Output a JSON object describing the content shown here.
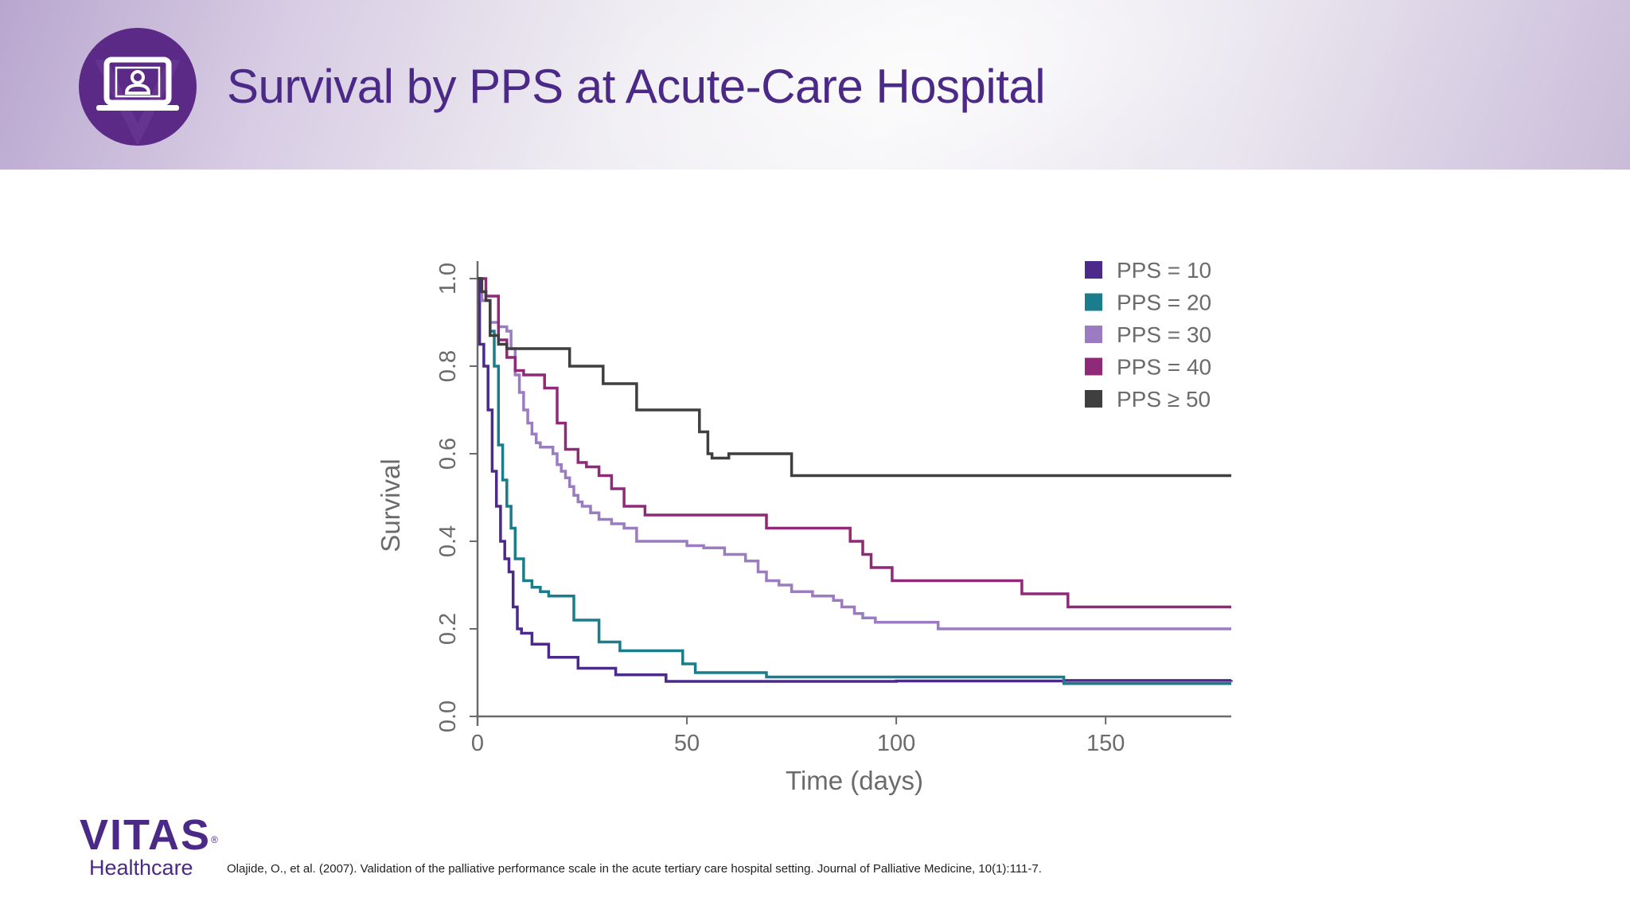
{
  "slide": {
    "title": "Survival by PPS at Acute-Care Hospital",
    "citation": "Olajide, O., et al. (2007). Validation of the palliative performance scale in the acute tertiary care hospital setting. Journal of Palliative Medicine, 10(1):111-7.",
    "logo": {
      "word": "VITAS",
      "mark": "®",
      "sub": "Healthcare"
    },
    "header_icon": "laptop-user-icon",
    "brand_color": "#5b2a86"
  },
  "chart_data": {
    "type": "line",
    "step": true,
    "xlabel": "Time (days)",
    "ylabel": "Survival",
    "xlim": [
      0,
      180
    ],
    "ylim": [
      0,
      1.0
    ],
    "xticks": [
      0,
      50,
      100,
      150
    ],
    "yticks": [
      0.0,
      0.2,
      0.4,
      0.6,
      0.8,
      1.0
    ],
    "grid": false,
    "legend_position": "top-right",
    "series": [
      {
        "name": "PPS = 10",
        "color": "#4b2a8a",
        "x": [
          0,
          0.5,
          1.5,
          2.5,
          3.5,
          4.5,
          5.5,
          6.5,
          7.5,
          8.5,
          9.5,
          10.5,
          13,
          17,
          24,
          33,
          45,
          60,
          100,
          140,
          180
        ],
        "y": [
          1.0,
          0.85,
          0.8,
          0.7,
          0.56,
          0.48,
          0.4,
          0.36,
          0.33,
          0.25,
          0.2,
          0.19,
          0.165,
          0.135,
          0.11,
          0.095,
          0.08,
          0.08,
          0.081,
          0.082,
          0.083
        ]
      },
      {
        "name": "PPS = 20",
        "color": "#1a7d8c",
        "x": [
          0,
          1,
          3,
          4,
          5,
          6,
          7,
          8,
          9,
          11,
          13,
          15,
          17,
          23,
          29,
          34,
          49,
          52,
          69,
          138,
          140,
          180
        ],
        "y": [
          1.0,
          0.95,
          0.88,
          0.8,
          0.62,
          0.54,
          0.48,
          0.43,
          0.36,
          0.31,
          0.295,
          0.285,
          0.275,
          0.22,
          0.17,
          0.15,
          0.12,
          0.1,
          0.09,
          0.09,
          0.075,
          0.075
        ]
      },
      {
        "name": "PPS = 30",
        "color": "#9b7bc1",
        "x": [
          0,
          1,
          3,
          5,
          7,
          8,
          9,
          10,
          11,
          12,
          13,
          14,
          15,
          18,
          19,
          20,
          21,
          22,
          23,
          24,
          25,
          27,
          29,
          32,
          35,
          38,
          50,
          54,
          59,
          64,
          67,
          69,
          72,
          75,
          80,
          85,
          87,
          90,
          92,
          95,
          105,
          110,
          180
        ],
        "y": [
          1.0,
          0.95,
          0.9,
          0.89,
          0.88,
          0.84,
          0.78,
          0.74,
          0.7,
          0.67,
          0.645,
          0.625,
          0.615,
          0.6,
          0.575,
          0.56,
          0.545,
          0.525,
          0.505,
          0.49,
          0.48,
          0.465,
          0.45,
          0.44,
          0.43,
          0.4,
          0.39,
          0.385,
          0.37,
          0.355,
          0.33,
          0.31,
          0.3,
          0.285,
          0.275,
          0.265,
          0.25,
          0.235,
          0.225,
          0.215,
          0.215,
          0.2,
          0.2
        ]
      },
      {
        "name": "PPS = 40",
        "color": "#8f2a78",
        "x": [
          0,
          2,
          5,
          7,
          9,
          11,
          16,
          19,
          21,
          24,
          26,
          29,
          32,
          35,
          40,
          48,
          69,
          89,
          92,
          94,
          99,
          110,
          130,
          141,
          180
        ],
        "y": [
          1.0,
          0.96,
          0.86,
          0.82,
          0.79,
          0.78,
          0.75,
          0.67,
          0.61,
          0.58,
          0.57,
          0.55,
          0.52,
          0.48,
          0.46,
          0.46,
          0.43,
          0.4,
          0.37,
          0.34,
          0.31,
          0.31,
          0.28,
          0.25,
          0.25
        ]
      },
      {
        "name": "PPS ≥ 50",
        "color": "#3f3f3f",
        "x": [
          0,
          1,
          2,
          3,
          5,
          7,
          20,
          22,
          30,
          38,
          48,
          53,
          55,
          56,
          60,
          75,
          180
        ],
        "y": [
          1.0,
          0.97,
          0.95,
          0.87,
          0.85,
          0.84,
          0.84,
          0.8,
          0.76,
          0.7,
          0.7,
          0.65,
          0.6,
          0.59,
          0.6,
          0.55,
          0.55
        ]
      }
    ]
  }
}
